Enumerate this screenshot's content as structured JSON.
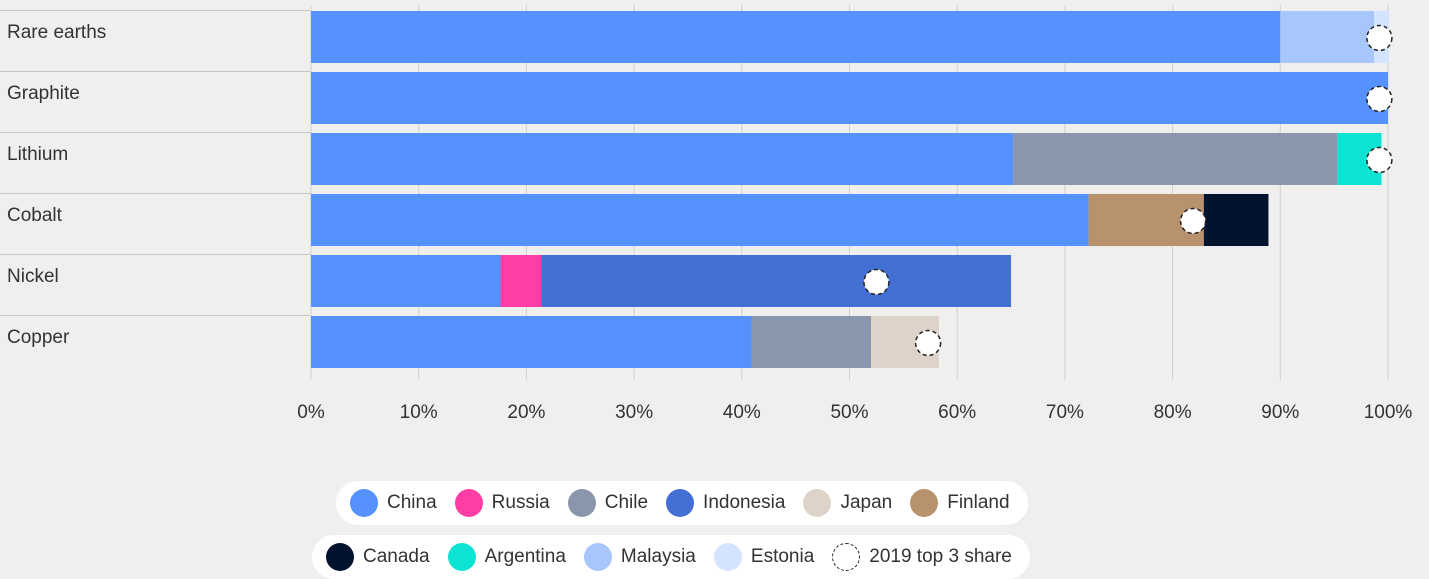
{
  "chart_data": {
    "type": "bar",
    "orientation": "horizontal",
    "stacked": true,
    "categories": [
      "Rare earths",
      "Graphite",
      "Lithium",
      "Cobalt",
      "Nickel",
      "Copper"
    ],
    "series": [
      {
        "name": "China",
        "color": "#5591ff",
        "values": [
          90,
          100,
          65.2,
          72.2,
          17.6,
          40.9
        ]
      },
      {
        "name": "Russia",
        "color": "#ff3ea5",
        "values": [
          0,
          0,
          0,
          0,
          3.8,
          0
        ]
      },
      {
        "name": "Chile",
        "color": "#8a96ab",
        "values": [
          0,
          0,
          30.1,
          0,
          0,
          11.1
        ]
      },
      {
        "name": "Indonesia",
        "color": "#4470d6",
        "values": [
          0,
          0,
          0,
          0,
          43.6,
          0
        ]
      },
      {
        "name": "Japan",
        "color": "#ddd3c9",
        "values": [
          0,
          0,
          0,
          0,
          0,
          6.3
        ]
      },
      {
        "name": "Finland",
        "color": "#b8916d",
        "values": [
          0,
          0,
          0,
          10.7,
          0,
          0
        ]
      },
      {
        "name": "Canada",
        "color": "#02132d",
        "values": [
          0,
          0,
          0,
          6.0,
          0,
          0
        ]
      },
      {
        "name": "Argentina",
        "color": "#0de3d2",
        "values": [
          0,
          0,
          4.1,
          0,
          0,
          0
        ]
      },
      {
        "name": "Malaysia",
        "color": "#a7c6fc",
        "values": [
          8.7,
          0,
          0,
          0,
          0,
          0
        ]
      },
      {
        "name": "Estonia",
        "color": "#d4e3ff",
        "values": [
          1.4,
          0,
          0,
          0,
          0,
          0
        ]
      }
    ],
    "markers": {
      "name": "2019 top 3 share",
      "values": [
        99.2,
        99.2,
        99.2,
        81.9,
        52.5,
        57.3
      ]
    },
    "xlim": [
      0,
      100
    ],
    "xticks": [
      "0%",
      "10%",
      "20%",
      "30%",
      "40%",
      "50%",
      "60%",
      "70%",
      "80%",
      "90%",
      "100%"
    ],
    "grid": true,
    "legend_position": "bottom"
  },
  "legend": {
    "row1": [
      {
        "label": "China",
        "color": "#5591ff"
      },
      {
        "label": "Russia",
        "color": "#ff3ea5"
      },
      {
        "label": "Chile",
        "color": "#8a96ab"
      },
      {
        "label": "Indonesia",
        "color": "#4470d6"
      },
      {
        "label": "Japan",
        "color": "#ddd3c9"
      },
      {
        "label": "Finland",
        "color": "#b8916d"
      }
    ],
    "row2": [
      {
        "label": "Canada",
        "color": "#02132d"
      },
      {
        "label": "Argentina",
        "color": "#0de3d2"
      },
      {
        "label": "Malaysia",
        "color": "#a7c6fc"
      },
      {
        "label": "Estonia",
        "color": "#d4e3ff"
      },
      {
        "label": "2019 top 3 share",
        "color": "",
        "dashed": true
      }
    ]
  }
}
